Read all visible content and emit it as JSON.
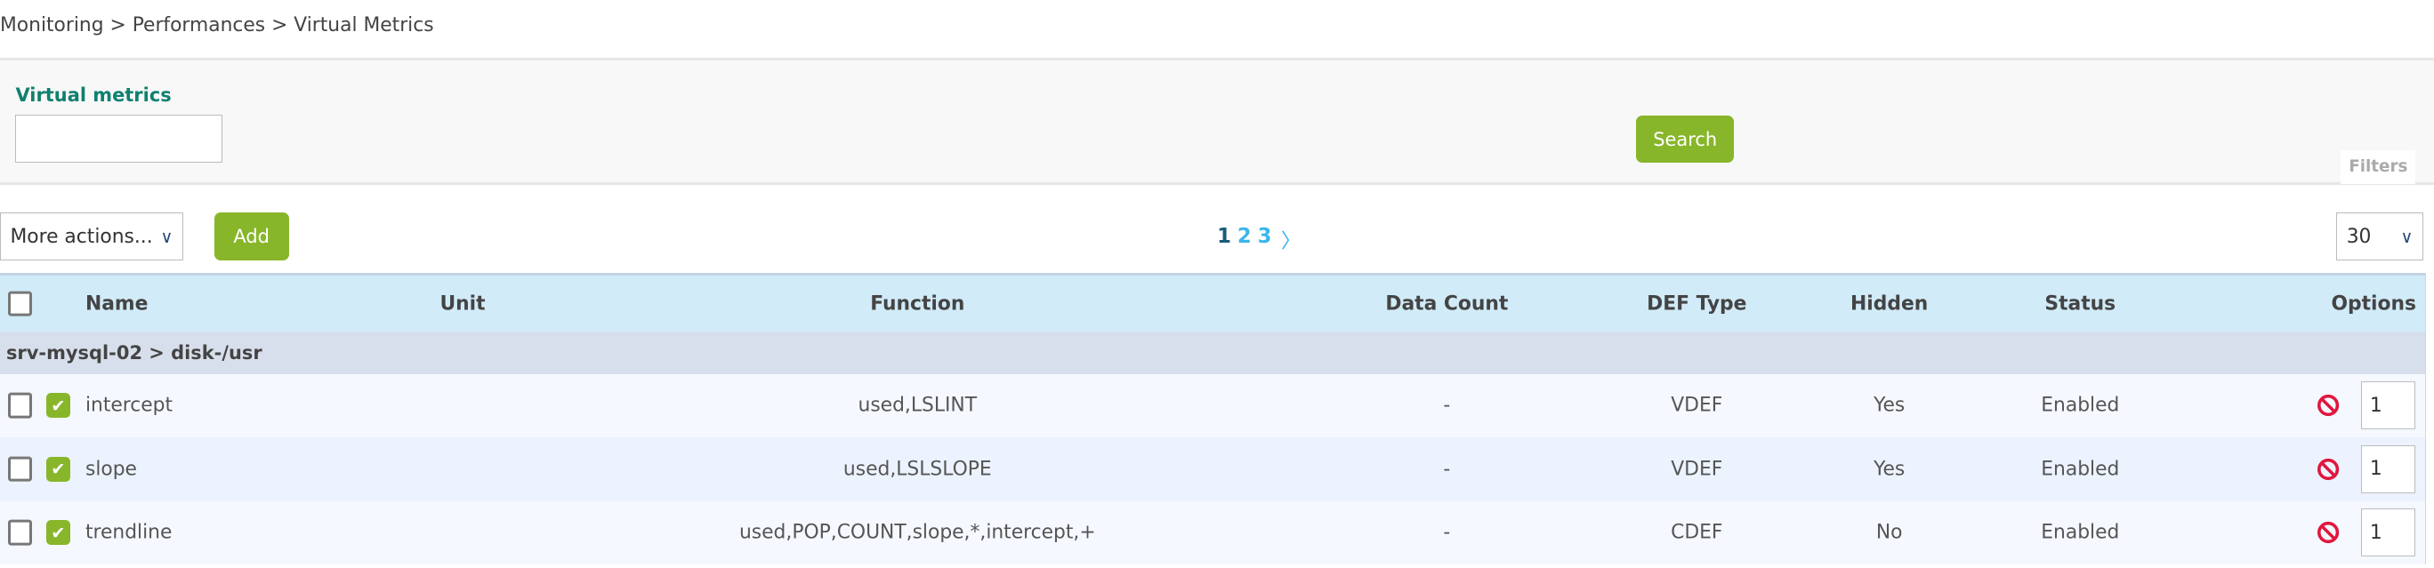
{
  "breadcrumb": [
    "Monitoring",
    " > ",
    "Performances",
    " > ",
    "Virtual Metrics"
  ],
  "filters": {
    "label": "Virtual metrics",
    "input_value": "",
    "search_label": "Search",
    "filters_tab": "Filters"
  },
  "actions": {
    "more_actions": "More actions...",
    "add_label": "Add",
    "pages": [
      "1",
      "2",
      "3"
    ],
    "current_page": "1",
    "next": "〉",
    "per_page": "30"
  },
  "table": {
    "headers": {
      "name": "Name",
      "unit": "Unit",
      "function": "Function",
      "data_count": "Data Count",
      "def_type": "DEF Type",
      "hidden": "Hidden",
      "status": "Status",
      "options": "Options"
    },
    "group": "srv-mysql-02 > disk-/usr",
    "rows": [
      {
        "name": "intercept",
        "unit": "",
        "function": "used,LSLINT",
        "data_count": "-",
        "def_type": "VDEF",
        "hidden": "Yes",
        "status": "Enabled",
        "option_value": "1"
      },
      {
        "name": "slope",
        "unit": "",
        "function": "used,LSLSLOPE",
        "data_count": "-",
        "def_type": "VDEF",
        "hidden": "Yes",
        "status": "Enabled",
        "option_value": "1"
      },
      {
        "name": "trendline",
        "unit": "",
        "function": "used,POP,COUNT,slope,*,intercept,+",
        "data_count": "-",
        "def_type": "CDEF",
        "hidden": "No",
        "status": "Enabled",
        "option_value": "1"
      }
    ]
  },
  "colors": {
    "accent_green": "#88b62a",
    "label_teal": "#10806f",
    "header_bg": "#d1ebf8",
    "disable_red": "#e0173f"
  },
  "icons": {
    "row_enabled": "checkmark-icon",
    "row_action": "disable-icon",
    "dropdown": "chevron-down-icon"
  }
}
